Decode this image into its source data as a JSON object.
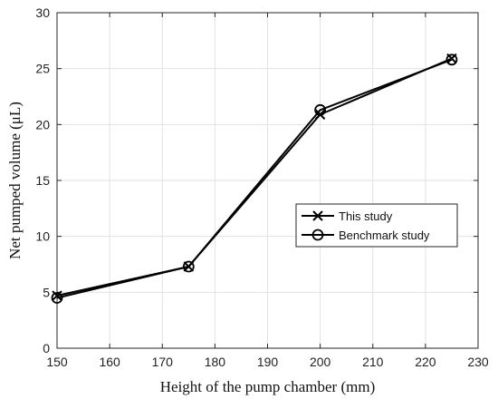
{
  "chart_data": {
    "type": "line",
    "title": "",
    "xlabel": "Height of the pump chamber (mm)",
    "ylabel": "Net pumped volume (μL)",
    "xlim": [
      150,
      230
    ],
    "ylim": [
      0,
      30
    ],
    "xticks": [
      150,
      160,
      170,
      180,
      190,
      200,
      210,
      220,
      230
    ],
    "yticks": [
      0,
      5,
      10,
      15,
      20,
      25,
      30
    ],
    "grid": true,
    "legend_position": "right",
    "series": [
      {
        "name": "This study",
        "marker": "x",
        "color": "#000000",
        "x": [
          150,
          175,
          200,
          225
        ],
        "y": [
          4.7,
          7.3,
          20.9,
          25.9
        ]
      },
      {
        "name": "Benchmark study",
        "marker": "o",
        "color": "#000000",
        "x": [
          150,
          175,
          200,
          225
        ],
        "y": [
          4.5,
          7.3,
          21.3,
          25.8
        ]
      }
    ]
  }
}
